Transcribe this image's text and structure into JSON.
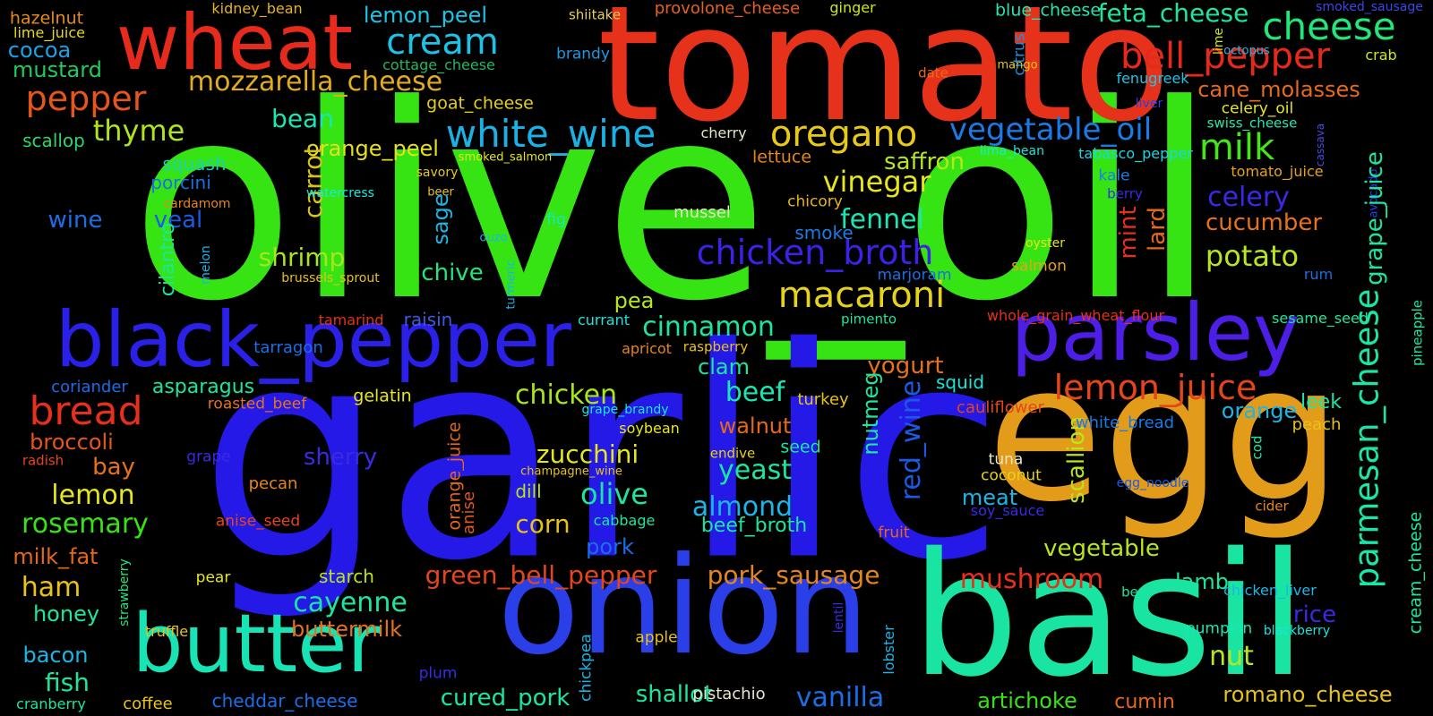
{
  "words": [
    {
      "text": "olive_oil",
      "color": "#36e414"
    },
    {
      "text": "garlic",
      "color": "#2419e6"
    },
    {
      "text": "tomato",
      "color": "#e6321a"
    },
    {
      "text": "egg",
      "color": "#e29c19"
    },
    {
      "text": "basil",
      "color": "#19e4a2"
    },
    {
      "text": "onion",
      "color": "#2a3fe8"
    },
    {
      "text": "wheat",
      "color": "#e62a1c"
    },
    {
      "text": "black_pepper",
      "color": "#2a20e8"
    },
    {
      "text": "parsley",
      "color": "#4d1ee6"
    },
    {
      "text": "butter",
      "color": "#19e2b4"
    },
    {
      "text": "cheese",
      "color": "#22e67a"
    },
    {
      "text": "bell_pepper",
      "color": "#e6291a"
    },
    {
      "text": "cream",
      "color": "#1cc3e6"
    },
    {
      "text": "pepper",
      "color": "#e6561a"
    },
    {
      "text": "mozzarella_cheese",
      "color": "#e2ac1a"
    },
    {
      "text": "white_wine",
      "color": "#1ab2e6"
    },
    {
      "text": "oregano",
      "color": "#e6c91a"
    },
    {
      "text": "vegetable_oil",
      "color": "#1a7be6"
    },
    {
      "text": "milk",
      "color": "#44e61a"
    },
    {
      "text": "macaroni",
      "color": "#e6d21a"
    },
    {
      "text": "chicken_broth",
      "color": "#3a22e6"
    },
    {
      "text": "lemon_juice",
      "color": "#e6451a"
    },
    {
      "text": "parmesan_cheese",
      "color": "#1ae6a7"
    },
    {
      "text": "bread",
      "color": "#e6301a"
    },
    {
      "text": "thyme",
      "color": "#aee61a"
    },
    {
      "text": "feta_cheese",
      "color": "#1ae69d"
    },
    {
      "text": "cane_molasses",
      "color": "#e66a1a"
    },
    {
      "text": "lemon_peel",
      "color": "#1ac5e6"
    },
    {
      "text": "cocoa",
      "color": "#1aa2e6"
    },
    {
      "text": "mustard",
      "color": "#22c95e"
    },
    {
      "text": "hazelnut",
      "color": "#e68a1a"
    },
    {
      "text": "lime_juice",
      "color": "#e6d81a"
    },
    {
      "text": "kidney_bean",
      "color": "#e6b41a"
    },
    {
      "text": "provolone_cheese",
      "color": "#e6621a"
    },
    {
      "text": "shiitake",
      "color": "#e6cf5a"
    },
    {
      "text": "ginger",
      "color": "#cde61a"
    },
    {
      "text": "blue_cheese",
      "color": "#22e6b2"
    },
    {
      "text": "smoked_sausage",
      "color": "#3a47e6"
    },
    {
      "text": "octopus",
      "color": "#2ab3e6"
    },
    {
      "text": "crab",
      "color": "#cfe61a"
    },
    {
      "text": "lime",
      "color": "#cde61a"
    },
    {
      "text": "citrus",
      "color": "#1a8fe6"
    },
    {
      "text": "mango",
      "color": "#e6c21a"
    },
    {
      "text": "fenugreek",
      "color": "#1ac5e6"
    },
    {
      "text": "date",
      "color": "#e6681a"
    },
    {
      "text": "brandy",
      "color": "#1a9ae6"
    },
    {
      "text": "cottage_cheese",
      "color": "#22b85e"
    },
    {
      "text": "goat_cheese",
      "color": "#e6cf1a"
    },
    {
      "text": "celery_oil",
      "color": "#e6e61a"
    },
    {
      "text": "swiss_cheese",
      "color": "#2ae6b0"
    },
    {
      "text": "liver",
      "color": "#2a3fe6"
    },
    {
      "text": "scallop",
      "color": "#2ad66a"
    },
    {
      "text": "bean",
      "color": "#1ae6b4"
    },
    {
      "text": "orange_peel",
      "color": "#e6e01a"
    },
    {
      "text": "carrot",
      "color": "#d6c21a"
    },
    {
      "text": "squash",
      "color": "#1ad0b6"
    },
    {
      "text": "porcini",
      "color": "#1a6ee6"
    },
    {
      "text": "wine",
      "color": "#1a6ee6"
    },
    {
      "text": "veal",
      "color": "#1a5ae6"
    },
    {
      "text": "savory",
      "color": "#e6c81a"
    },
    {
      "text": "smoked_salmon",
      "color": "#e6e61a"
    },
    {
      "text": "cherry",
      "color": "#e6e6c6"
    },
    {
      "text": "lettuce",
      "color": "#e6861a"
    },
    {
      "text": "saffron",
      "color": "#b8e61a"
    },
    {
      "text": "vinegar",
      "color": "#e6e61a"
    },
    {
      "text": "lima_bean",
      "color": "#1ae6d8"
    },
    {
      "text": "tabasco_pepper",
      "color": "#1ad6e6"
    },
    {
      "text": "tomato_juice",
      "color": "#e6a21a"
    },
    {
      "text": "cassava",
      "color": "#4a4ae6"
    },
    {
      "text": "avocado",
      "color": "#2a3fe6"
    },
    {
      "text": "grape_juice",
      "color": "#1ae6a2"
    },
    {
      "text": "kale",
      "color": "#1a7ee6"
    },
    {
      "text": "berry",
      "color": "#3a2ae6"
    },
    {
      "text": "cardamom",
      "color": "#e6861a"
    },
    {
      "text": "watercress",
      "color": "#1ae6e0"
    },
    {
      "text": "beer",
      "color": "#e6c21a"
    },
    {
      "text": "fig",
      "color": "#1ae6b8"
    },
    {
      "text": "cilantro",
      "color": "#1ae69d"
    },
    {
      "text": "melon",
      "color": "#1ab6e6"
    },
    {
      "text": "mussel",
      "color": "#e6e6c6"
    },
    {
      "text": "chicory",
      "color": "#e6b41a"
    },
    {
      "text": "celery",
      "color": "#3a2ae6"
    },
    {
      "text": "fennel",
      "color": "#1ae6b4"
    },
    {
      "text": "cucumber",
      "color": "#e6721a"
    },
    {
      "text": "smoke",
      "color": "#1a7be6"
    },
    {
      "text": "shrimp",
      "color": "#a6e61a"
    },
    {
      "text": "sage",
      "color": "#1ab6e6"
    },
    {
      "text": "chive",
      "color": "#22e67a"
    },
    {
      "text": "ouzo",
      "color": "#1ab6e6"
    },
    {
      "text": "turmeric",
      "color": "#1ab6e6"
    },
    {
      "text": "brussels_sprout",
      "color": "#e6c21a"
    },
    {
      "text": "marjoram",
      "color": "#1a6ee6"
    },
    {
      "text": "oyster",
      "color": "#e6e61a"
    },
    {
      "text": "salmon",
      "color": "#e6a21a"
    },
    {
      "text": "potato",
      "color": "#b8e61a"
    },
    {
      "text": "mint",
      "color": "#e6301a"
    },
    {
      "text": "lard",
      "color": "#e6681a"
    },
    {
      "text": "rum",
      "color": "#1a6ee6"
    },
    {
      "text": "pineapple",
      "color": "#1ae6a2"
    },
    {
      "text": "pea",
      "color": "#b8e61a"
    },
    {
      "text": "cinnamon",
      "color": "#1ae6a2"
    },
    {
      "text": "currant",
      "color": "#1ae6e0"
    },
    {
      "text": "pimento",
      "color": "#1ae6a2"
    },
    {
      "text": "whole_grain_wheat_flour",
      "color": "#e6301a"
    },
    {
      "text": "sesame_seed",
      "color": "#1ae69d"
    },
    {
      "text": "tamarind",
      "color": "#e6301a"
    },
    {
      "text": "raisin",
      "color": "#3a5ae6"
    },
    {
      "text": "tarragon",
      "color": "#1a6ee6"
    },
    {
      "text": "apricot",
      "color": "#e6861a"
    },
    {
      "text": "raspberry",
      "color": "#e6c21a"
    },
    {
      "text": "yogurt",
      "color": "#e6721a"
    },
    {
      "text": "coriander",
      "color": "#1a6ee6"
    },
    {
      "text": "asparagus",
      "color": "#1ae6a2"
    },
    {
      "text": "clam",
      "color": "#1ae6a2"
    },
    {
      "text": "squid",
      "color": "#1ae6d8"
    },
    {
      "text": "beef",
      "color": "#1ae6b4"
    },
    {
      "text": "roasted_beef",
      "color": "#e6721a"
    },
    {
      "text": "gelatin",
      "color": "#e6e61a"
    },
    {
      "text": "chicken",
      "color": "#a6e61a"
    },
    {
      "text": "grape_brandy",
      "color": "#1ae6e0"
    },
    {
      "text": "turkey",
      "color": "#e6c21a"
    },
    {
      "text": "nutmeg",
      "color": "#1ae6a2"
    },
    {
      "text": "red_wine",
      "color": "#1a5ae6"
    },
    {
      "text": "cauliflower",
      "color": "#e6451a"
    },
    {
      "text": "leek",
      "color": "#1ae6a2"
    },
    {
      "text": "peach",
      "color": "#e6c21a"
    },
    {
      "text": "orange",
      "color": "#1ab6e6"
    },
    {
      "text": "scallion",
      "color": "#b8e61a"
    },
    {
      "text": "white_bread",
      "color": "#1a7be6"
    },
    {
      "text": "cod",
      "color": "#1ae6a2"
    },
    {
      "text": "broccoli",
      "color": "#e6561a"
    },
    {
      "text": "radish",
      "color": "#e6451a"
    },
    {
      "text": "bay",
      "color": "#e6721a"
    },
    {
      "text": "grape",
      "color": "#3a2ae6"
    },
    {
      "text": "sherry",
      "color": "#3a2ae6"
    },
    {
      "text": "orange_juice",
      "color": "#e6681a"
    },
    {
      "text": "anise",
      "color": "#e6561a"
    },
    {
      "text": "walnut",
      "color": "#e6681a"
    },
    {
      "text": "soybean",
      "color": "#e6e61a"
    },
    {
      "text": "zucchini",
      "color": "#e6e61a"
    },
    {
      "text": "champagne_wine",
      "color": "#e6c21a"
    },
    {
      "text": "yeast",
      "color": "#1ae6a2"
    },
    {
      "text": "endive",
      "color": "#e6d21a"
    },
    {
      "text": "seed",
      "color": "#1ae6a2"
    },
    {
      "text": "tuna",
      "color": "#e6e6c6"
    },
    {
      "text": "coconut",
      "color": "#e6d21a"
    },
    {
      "text": "egg_noodle",
      "color": "#1a5ae6"
    },
    {
      "text": "cider",
      "color": "#e6861a"
    },
    {
      "text": "lemon",
      "color": "#e6e61a"
    },
    {
      "text": "dill",
      "color": "#b8e61a"
    },
    {
      "text": "olive",
      "color": "#1ae6a2"
    },
    {
      "text": "almond",
      "color": "#1ab6e6"
    },
    {
      "text": "meat",
      "color": "#1ab6e6"
    },
    {
      "text": "soy_sauce",
      "color": "#3a2ae6"
    },
    {
      "text": "rosemary",
      "color": "#36e414"
    },
    {
      "text": "pecan",
      "color": "#e6861a"
    },
    {
      "text": "corn",
      "color": "#e6c21a"
    },
    {
      "text": "cabbage",
      "color": "#1ae6a2"
    },
    {
      "text": "beef_broth",
      "color": "#1ae6a2"
    },
    {
      "text": "fruit",
      "color": "#e6681a"
    },
    {
      "text": "vegetable",
      "color": "#b8e61a"
    },
    {
      "text": "anise_seed",
      "color": "#e6451a"
    },
    {
      "text": "milk_fat",
      "color": "#e6681a"
    },
    {
      "text": "strawberry",
      "color": "#22e67a"
    },
    {
      "text": "pork",
      "color": "#1a6ee6"
    },
    {
      "text": "green_bell_pepper",
      "color": "#e6451a"
    },
    {
      "text": "pork_sausage",
      "color": "#e6861a"
    },
    {
      "text": "mushroom",
      "color": "#e6301a"
    },
    {
      "text": "ham",
      "color": "#e6c21a"
    },
    {
      "text": "pear",
      "color": "#e6e61a"
    },
    {
      "text": "starch",
      "color": "#b8e61a"
    },
    {
      "text": "lamb",
      "color": "#1ae6a2"
    },
    {
      "text": "beet",
      "color": "#1ae6a2"
    },
    {
      "text": "chicken_liver",
      "color": "#1ab6e6"
    },
    {
      "text": "rice",
      "color": "#3a2ae6"
    },
    {
      "text": "cream_cheese",
      "color": "#1ae6a2"
    },
    {
      "text": "honey",
      "color": "#1ae6a2"
    },
    {
      "text": "cayenne",
      "color": "#1ae6a2"
    },
    {
      "text": "truffle",
      "color": "#e6c21a"
    },
    {
      "text": "lentil",
      "color": "#3a2ae6"
    },
    {
      "text": "pumpkin",
      "color": "#1ae6b4"
    },
    {
      "text": "blackberry",
      "color": "#1ae6d8"
    },
    {
      "text": "nut",
      "color": "#b8e61a"
    },
    {
      "text": "buttermilk",
      "color": "#e6721a"
    },
    {
      "text": "apple",
      "color": "#e6c21a"
    },
    {
      "text": "bacon",
      "color": "#1ab6e6"
    },
    {
      "text": "lobster",
      "color": "#1ab6e6"
    },
    {
      "text": "chickpea",
      "color": "#1ab6e6"
    },
    {
      "text": "fish",
      "color": "#1ae6a2"
    },
    {
      "text": "plum",
      "color": "#3a2ae6"
    },
    {
      "text": "cured_pork",
      "color": "#1ae6a2"
    },
    {
      "text": "shallot",
      "color": "#1ae6a2"
    },
    {
      "text": "pistachio",
      "color": "#e6e6c6"
    },
    {
      "text": "vanilla",
      "color": "#1a6ee6"
    },
    {
      "text": "artichoke",
      "color": "#36e414"
    },
    {
      "text": "cumin",
      "color": "#e6681a"
    },
    {
      "text": "romano_cheese",
      "color": "#e6c21a"
    },
    {
      "text": "cranberry",
      "color": "#1ae6a2"
    },
    {
      "text": "coffee",
      "color": "#e6c21a"
    },
    {
      "text": "cheddar_cheese",
      "color": "#1a6ee6"
    }
  ]
}
